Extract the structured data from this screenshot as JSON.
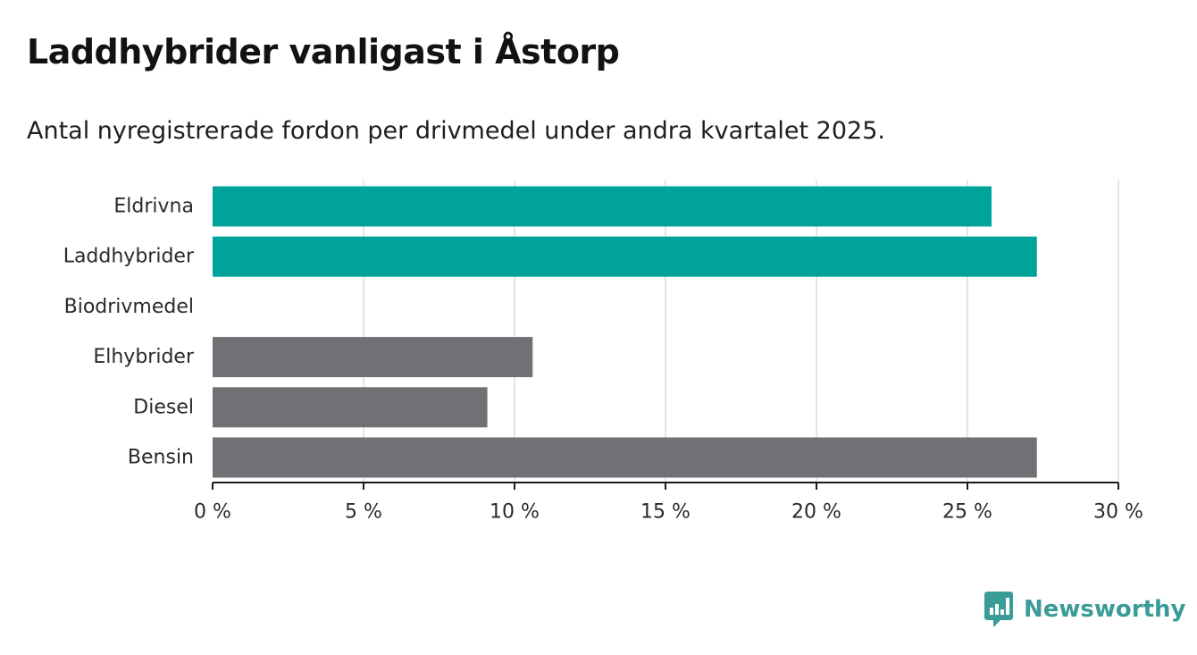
{
  "header": {
    "title": "Laddhybrider vanligast i Åstorp",
    "subtitle": "Antal nyregistrerade fordon per drivmedel under andra kvartalet 2025."
  },
  "brand": {
    "name": "Newsworthy",
    "icon": "bar-chart-logo-icon",
    "color": "#3a9c96"
  },
  "chart_data": {
    "type": "bar",
    "orientation": "horizontal",
    "categories": [
      "Eldrivna",
      "Laddhybrider",
      "Biodrivmedel",
      "Elhybrider",
      "Diesel",
      "Bensin"
    ],
    "values": [
      25.8,
      27.3,
      0,
      10.6,
      9.1,
      27.3
    ],
    "colors": [
      "#00a39a",
      "#00a39a",
      "#00a39a",
      "#717075",
      "#717075",
      "#717075"
    ],
    "xlim": [
      0,
      30
    ],
    "x_ticks": [
      0,
      5,
      10,
      15,
      20,
      25,
      30
    ],
    "x_tick_labels": [
      "0 %",
      "5 %",
      "10 %",
      "15 %",
      "20 %",
      "25 %",
      "30 %"
    ],
    "grid": true,
    "legend": "none"
  }
}
